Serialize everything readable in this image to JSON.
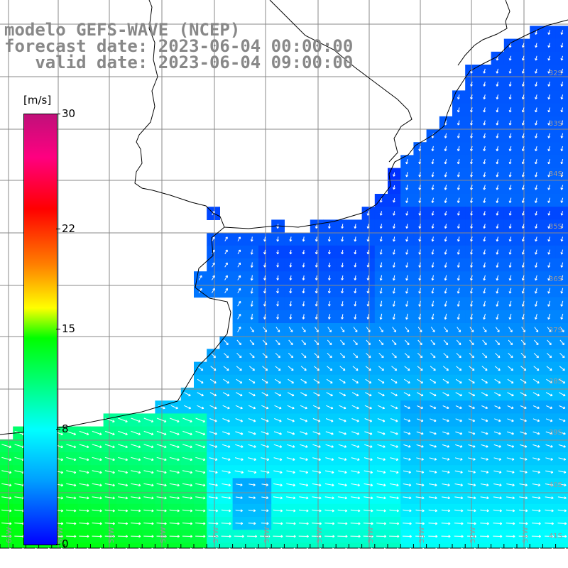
{
  "title": {
    "line1": "modelo GEFS-WAVE (NCEP)",
    "line2": "forecast date: 2023-06-04 00:00:00",
    "line3": "   valid date: 2023-06-04 09:00:00"
  },
  "colorbar": {
    "unit": "[m/s]",
    "ticks": [
      "30",
      "22",
      "15",
      "8",
      "0"
    ],
    "tick_values": [
      30,
      22,
      15,
      8,
      0
    ],
    "range": [
      0,
      30
    ],
    "colors": [
      "#0000ff",
      "#00a0ff",
      "#00ffff",
      "#00ff80",
      "#00ff00",
      "#ffff00",
      "#ff8000",
      "#ff0000",
      "#ff0080",
      "#c0107a"
    ]
  },
  "grid": {
    "lat_labels": [
      "32S",
      "33S",
      "34S",
      "35S",
      "36S",
      "37S",
      "38S",
      "39S",
      "40S",
      "41S"
    ],
    "lon_labels": [
      "61W",
      "60W",
      "59W",
      "58W",
      "57W",
      "56W",
      "55W",
      "54W",
      "53W",
      "52W",
      "51W"
    ]
  },
  "map": {
    "variable": "wind speed",
    "land_color": "#ffffff",
    "coastline_color": "#000000"
  }
}
